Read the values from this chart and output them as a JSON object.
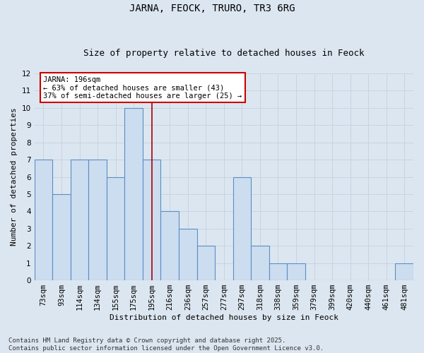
{
  "title": "JARNA, FEOCK, TRURO, TR3 6RG",
  "subtitle": "Size of property relative to detached houses in Feock",
  "xlabel": "Distribution of detached houses by size in Feock",
  "ylabel": "Number of detached properties",
  "categories": [
    "73sqm",
    "93sqm",
    "114sqm",
    "134sqm",
    "155sqm",
    "175sqm",
    "195sqm",
    "216sqm",
    "236sqm",
    "257sqm",
    "277sqm",
    "297sqm",
    "318sqm",
    "338sqm",
    "359sqm",
    "379sqm",
    "399sqm",
    "420sqm",
    "440sqm",
    "461sqm",
    "481sqm"
  ],
  "values": [
    7,
    5,
    7,
    7,
    6,
    10,
    7,
    4,
    3,
    2,
    0,
    6,
    2,
    1,
    1,
    0,
    0,
    0,
    0,
    0,
    1
  ],
  "bar_color": "#ccddf0",
  "bar_edgecolor": "#5b8ec4",
  "bar_linewidth": 0.8,
  "jarna_index": 6,
  "jarna_line_color": "#aa0000",
  "annotation_line1": "JARNA: 196sqm",
  "annotation_line2": "← 63% of detached houses are smaller (43)",
  "annotation_line3": "37% of semi-detached houses are larger (25) →",
  "annotation_box_edgecolor": "#cc0000",
  "annotation_box_facecolor": "#ffffff",
  "ylim": [
    0,
    12
  ],
  "yticks": [
    0,
    1,
    2,
    3,
    4,
    5,
    6,
    7,
    8,
    9,
    10,
    11,
    12
  ],
  "grid_color": "#c8d4e0",
  "background_color": "#dce6f0",
  "footer_text": "Contains HM Land Registry data © Crown copyright and database right 2025.\nContains public sector information licensed under the Open Government Licence v3.0.",
  "title_fontsize": 10,
  "subtitle_fontsize": 9,
  "xlabel_fontsize": 8,
  "ylabel_fontsize": 8,
  "tick_fontsize": 7.5,
  "annotation_fontsize": 7.5,
  "footer_fontsize": 6.5
}
